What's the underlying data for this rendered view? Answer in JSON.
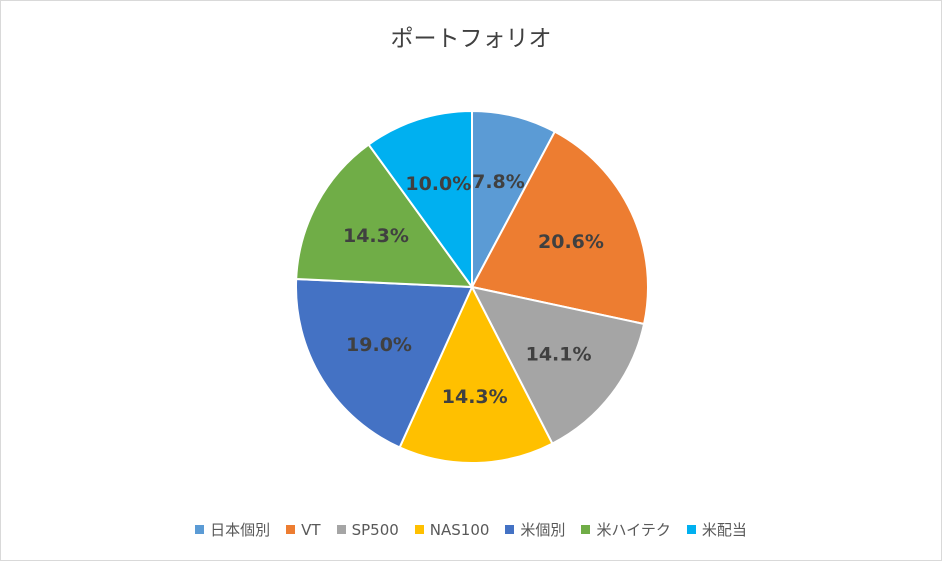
{
  "chart_data": {
    "type": "pie",
    "title": "ポートフォリオ",
    "categories": [
      "日本個別",
      "VT",
      "SP500",
      "NAS100",
      "米個別",
      "米ハイテク",
      "米配当"
    ],
    "values": [
      7.8,
      20.6,
      14.1,
      14.3,
      19.0,
      14.3,
      10.0
    ],
    "labels": [
      "7.8%",
      "20.6%",
      "14.1%",
      "14.3%",
      "19.0%",
      "14.3%",
      "10.0%"
    ],
    "colors": [
      "#5b9bd5",
      "#ed7d31",
      "#a5a5a5",
      "#ffc000",
      "#4472c4",
      "#70ad47",
      "#00b0f0"
    ],
    "legend_position": "bottom",
    "start": "top",
    "direction": "clockwise"
  }
}
